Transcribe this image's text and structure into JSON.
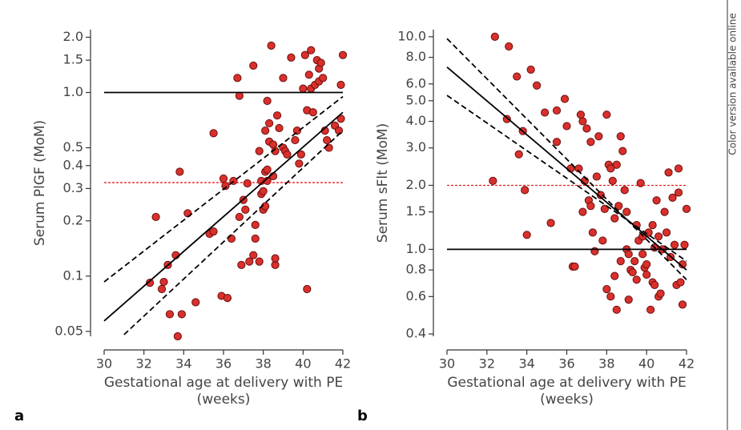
{
  "side_note": "Color version available online",
  "chart_data": [
    {
      "type": "scatter",
      "panel_label": "a",
      "ylabel": "Serum PlGF (MoM)",
      "xlabel": [
        "Gestational age at delivery with PE",
        "(weeks)"
      ],
      "xlim": [
        30,
        42
      ],
      "xticks": [
        30,
        32,
        34,
        36,
        38,
        40,
        42
      ],
      "ylim": [
        0.047,
        2.2
      ],
      "log_y": true,
      "yticks": [
        0.05,
        0.1,
        0.2,
        0.3,
        0.4,
        0.5,
        {
          "value": 1,
          "label": "1.0"
        },
        {
          "value": 1.5,
          "label": "1.5"
        },
        {
          "value": 2,
          "label": "2.0"
        }
      ],
      "color": "#d9302c",
      "points": [
        [
          32.3,
          0.092
        ],
        [
          32.6,
          0.21
        ],
        [
          32.9,
          0.085
        ],
        [
          33,
          0.093
        ],
        [
          33.2,
          0.115
        ],
        [
          33.3,
          0.062
        ],
        [
          33.6,
          0.13
        ],
        [
          33.7,
          0.047
        ],
        [
          33.8,
          0.37
        ],
        [
          33.9,
          0.062
        ],
        [
          34.2,
          0.22
        ],
        [
          34.6,
          0.072
        ],
        [
          35.3,
          0.17
        ],
        [
          35.5,
          0.6
        ],
        [
          35.5,
          0.175
        ],
        [
          36,
          0.34
        ],
        [
          36.1,
          0.31
        ],
        [
          35.9,
          0.078
        ],
        [
          36.2,
          0.076
        ],
        [
          36.4,
          0.16
        ],
        [
          36.5,
          0.33
        ],
        [
          36.7,
          1.2
        ],
        [
          36.8,
          0.96
        ],
        [
          36.8,
          0.21
        ],
        [
          36.9,
          0.115
        ],
        [
          37,
          0.26
        ],
        [
          37.1,
          0.23
        ],
        [
          37.2,
          0.32
        ],
        [
          37.3,
          0.12
        ],
        [
          37.5,
          0.13
        ],
        [
          37.5,
          1.4
        ],
        [
          37.6,
          0.19
        ],
        [
          37.6,
          0.16
        ],
        [
          37.8,
          0.12
        ],
        [
          37.8,
          0.48
        ],
        [
          37.9,
          0.33
        ],
        [
          37.9,
          0.28
        ],
        [
          38,
          0.23
        ],
        [
          38,
          0.29
        ],
        [
          38.1,
          0.37
        ],
        [
          38.1,
          0.62
        ],
        [
          38.1,
          0.24
        ],
        [
          38.2,
          0.38
        ],
        [
          38.2,
          0.33
        ],
        [
          38.2,
          0.9
        ],
        [
          38.3,
          0.68
        ],
        [
          38.3,
          0.54
        ],
        [
          38.4,
          1.8
        ],
        [
          38.5,
          0.52
        ],
        [
          38.5,
          0.35
        ],
        [
          38.6,
          0.115
        ],
        [
          38.6,
          0.125
        ],
        [
          38.6,
          0.48
        ],
        [
          38.7,
          0.75
        ],
        [
          38.8,
          0.64
        ],
        [
          39,
          1.2
        ],
        [
          39,
          0.5
        ],
        [
          39.1,
          0.48
        ],
        [
          39.2,
          0.46
        ],
        [
          39.4,
          1.55
        ],
        [
          39.6,
          0.55
        ],
        [
          39.7,
          0.62
        ],
        [
          39.8,
          0.41
        ],
        [
          39.9,
          0.46
        ],
        [
          40,
          1.05
        ],
        [
          40.1,
          1.6
        ],
        [
          40.2,
          0.8
        ],
        [
          40.2,
          0.085
        ],
        [
          40.3,
          1.25
        ],
        [
          40.4,
          1.7
        ],
        [
          40.4,
          1.05
        ],
        [
          40.5,
          0.78
        ],
        [
          40.6,
          1.1
        ],
        [
          40.7,
          1.5
        ],
        [
          40.8,
          1.15
        ],
        [
          40.8,
          1.35
        ],
        [
          40.9,
          1.45
        ],
        [
          41,
          1.2
        ],
        [
          41.1,
          0.62
        ],
        [
          41.3,
          0.5
        ],
        [
          41.6,
          0.66
        ],
        [
          41.8,
          0.62
        ],
        [
          41.9,
          1.1
        ],
        [
          41.9,
          0.72
        ],
        [
          42,
          1.6
        ],
        [
          41.2,
          0.55
        ]
      ],
      "lines": [
        {
          "x": [
            30,
            42
          ],
          "y": [
            1,
            1
          ],
          "style": "solid",
          "color": "#000000"
        },
        {
          "x": [
            30,
            42
          ],
          "y": [
            0.323,
            0.323
          ],
          "style": "dotted",
          "color": "#e02020"
        },
        {
          "x": [
            30,
            42
          ],
          "y": [
            0.057,
            0.78
          ],
          "style": "solid",
          "color": "#000000"
        },
        {
          "x": [
            30,
            42
          ],
          "y": [
            0.093,
            0.95
          ],
          "style": "dashed",
          "color": "#000000"
        },
        {
          "x": [
            31,
            42
          ],
          "y": [
            0.048,
            0.62
          ],
          "style": "dashed",
          "color": "#000000"
        }
      ]
    },
    {
      "type": "scatter",
      "panel_label": "b",
      "ylabel": "Serum sFlt (MoM)",
      "xlabel": [
        "Gestational age at delivery with PE",
        "(weeks)"
      ],
      "xlim": [
        30,
        42
      ],
      "xticks": [
        30,
        32,
        34,
        36,
        38,
        40,
        42
      ],
      "ylim": [
        0.39,
        10.8
      ],
      "log_y": true,
      "yticks": [
        0.4,
        0.6,
        0.8,
        {
          "value": 1,
          "label": "1.0"
        },
        {
          "value": 1.5,
          "label": "1.5"
        },
        {
          "value": 2,
          "label": "2.0"
        },
        {
          "value": 3,
          "label": "3.0"
        },
        {
          "value": 4,
          "label": "4.0"
        },
        {
          "value": 5,
          "label": "5.0"
        },
        {
          "value": 6,
          "label": "6.0"
        },
        {
          "value": 8,
          "label": "8.0"
        },
        {
          "value": 10,
          "label": "10.0"
        }
      ],
      "color": "#d9302c",
      "points": [
        [
          32.3,
          2.1
        ],
        [
          32.4,
          10
        ],
        [
          33,
          4.1
        ],
        [
          33.1,
          9
        ],
        [
          33.5,
          6.5
        ],
        [
          33.6,
          2.8
        ],
        [
          33.8,
          3.6
        ],
        [
          33.9,
          1.9
        ],
        [
          34.2,
          7
        ],
        [
          34,
          1.17
        ],
        [
          34.5,
          5.9
        ],
        [
          34.9,
          4.4
        ],
        [
          35.2,
          1.33
        ],
        [
          35.5,
          4.5
        ],
        [
          35.5,
          3.2
        ],
        [
          35.9,
          5.1
        ],
        [
          36,
          3.8
        ],
        [
          36.2,
          2.4
        ],
        [
          36.3,
          0.83
        ],
        [
          36.4,
          0.83
        ],
        [
          36.6,
          2.4
        ],
        [
          36.7,
          4.3
        ],
        [
          36.8,
          4
        ],
        [
          36.8,
          1.5
        ],
        [
          36.9,
          2.1
        ],
        [
          37,
          3.7
        ],
        [
          37.1,
          1.7
        ],
        [
          37.2,
          3.2
        ],
        [
          37.2,
          1.6
        ],
        [
          37.3,
          1.2
        ],
        [
          37.4,
          0.98
        ],
        [
          37.5,
          2.2
        ],
        [
          37.6,
          3.4
        ],
        [
          37.7,
          1.8
        ],
        [
          37.8,
          1.1
        ],
        [
          37.9,
          1.55
        ],
        [
          38,
          4.3
        ],
        [
          38,
          0.65
        ],
        [
          38.1,
          2.5
        ],
        [
          38.2,
          2.4
        ],
        [
          38.2,
          0.6
        ],
        [
          38.3,
          2.1
        ],
        [
          38.4,
          1.4
        ],
        [
          38.4,
          0.75
        ],
        [
          38.5,
          2.5
        ],
        [
          38.5,
          0.52
        ],
        [
          38.6,
          1.6
        ],
        [
          38.7,
          3.4
        ],
        [
          38.7,
          0.88
        ],
        [
          38.8,
          2.9
        ],
        [
          38.9,
          1.9
        ],
        [
          39,
          1.5
        ],
        [
          39,
          1
        ],
        [
          39.1,
          0.58
        ],
        [
          39.2,
          0.8
        ],
        [
          39.3,
          0.78
        ],
        [
          39.4,
          0.88
        ],
        [
          39.5,
          1.3
        ],
        [
          39.5,
          0.72
        ],
        [
          39.6,
          1.1
        ],
        [
          39.7,
          2.05
        ],
        [
          39.8,
          1.15
        ],
        [
          39.8,
          0.95
        ],
        [
          39.9,
          0.82
        ],
        [
          40,
          0.85
        ],
        [
          40,
          0.76
        ],
        [
          40.1,
          1.2
        ],
        [
          40.2,
          0.52
        ],
        [
          40.3,
          1.3
        ],
        [
          40.3,
          0.7
        ],
        [
          40.4,
          1.02
        ],
        [
          40.5,
          1.7
        ],
        [
          40.6,
          1.15
        ],
        [
          40.6,
          0.6
        ],
        [
          40.7,
          0.62
        ],
        [
          40.8,
          1
        ],
        [
          40.9,
          1.5
        ],
        [
          41,
          1.2
        ],
        [
          41.1,
          2.3
        ],
        [
          41.2,
          0.92
        ],
        [
          41.3,
          1.75
        ],
        [
          41.4,
          1.05
        ],
        [
          41.5,
          0.68
        ],
        [
          41.6,
          2.4
        ],
        [
          41.6,
          1.85
        ],
        [
          41.7,
          0.7
        ],
        [
          41.8,
          0.55
        ],
        [
          41.8,
          0.85
        ],
        [
          41.9,
          1.05
        ],
        [
          42,
          1.55
        ],
        [
          39.1,
          0.95
        ],
        [
          40.4,
          0.68
        ]
      ],
      "lines": [
        {
          "x": [
            30,
            42
          ],
          "y": [
            1,
            1
          ],
          "style": "solid",
          "color": "#000000"
        },
        {
          "x": [
            30,
            42
          ],
          "y": [
            2,
            2
          ],
          "style": "dotted",
          "color": "#e02020"
        },
        {
          "x": [
            30,
            42
          ],
          "y": [
            7.2,
            0.8
          ],
          "style": "solid",
          "color": "#000000"
        },
        {
          "x": [
            30,
            42
          ],
          "y": [
            9.8,
            0.72
          ],
          "style": "dashed",
          "color": "#000000"
        },
        {
          "x": [
            30,
            42
          ],
          "y": [
            5.3,
            0.88
          ],
          "style": "dashed",
          "color": "#000000"
        }
      ]
    }
  ]
}
